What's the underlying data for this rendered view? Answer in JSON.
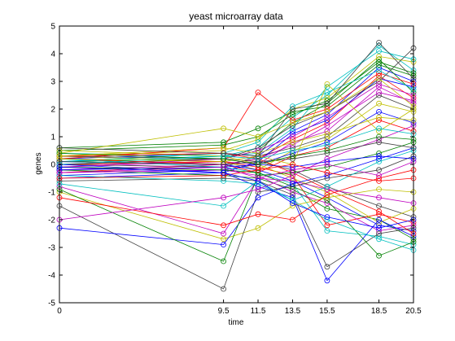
{
  "chart_data": {
    "type": "line",
    "title": "yeast microarray data",
    "xlabel": "time",
    "ylabel": "genes",
    "x": [
      0,
      9.5,
      11.5,
      13.5,
      15.5,
      18.5,
      20.5
    ],
    "x_ticks": [
      0,
      9.5,
      11.5,
      13.5,
      15.5,
      18.5,
      20.5
    ],
    "x_tick_labels": [
      "0",
      "9.5",
      "11.5",
      "13.5",
      "15.5",
      "18.5",
      "20.5"
    ],
    "xlim": [
      0,
      20.5
    ],
    "y_ticks": [
      -5,
      -4,
      -3,
      -2,
      -1,
      0,
      1,
      2,
      3,
      4,
      5
    ],
    "y_tick_labels": [
      "-5",
      "-4",
      "-3",
      "-2",
      "-1",
      "0",
      "1",
      "2",
      "3",
      "4",
      "5"
    ],
    "ylim": [
      -5,
      5
    ],
    "grid": false,
    "legend": "none",
    "marker": "open-circle",
    "series_colors": [
      "#0000ff",
      "#008000",
      "#ff0000",
      "#00bfbf",
      "#bf00bf",
      "#bfbf00",
      "#404040"
    ],
    "series": [
      {
        "values": [
          0.2,
          0.4,
          0.3,
          1.2,
          1.8,
          3.5,
          3.0
        ]
      },
      {
        "values": [
          0.1,
          0.2,
          0.5,
          1.5,
          2.2,
          3.8,
          2.6
        ]
      },
      {
        "values": [
          -0.3,
          0.0,
          0.2,
          0.9,
          1.5,
          3.2,
          2.4
        ]
      },
      {
        "values": [
          0.4,
          0.3,
          0.6,
          1.7,
          2.5,
          4.3,
          3.4
        ]
      },
      {
        "values": [
          -0.1,
          0.1,
          0.0,
          0.8,
          1.2,
          2.8,
          2.2
        ]
      },
      {
        "values": [
          0.3,
          0.5,
          0.9,
          2.0,
          2.4,
          3.9,
          3.7
        ]
      },
      {
        "values": [
          0.0,
          -0.1,
          0.3,
          0.6,
          1.0,
          2.5,
          2.0
        ]
      },
      {
        "values": [
          -0.5,
          -0.3,
          0.1,
          1.1,
          1.6,
          3.1,
          2.8
        ]
      },
      {
        "values": [
          0.6,
          0.8,
          1.3,
          1.9,
          2.1,
          3.6,
          3.2
        ]
      },
      {
        "values": [
          0.2,
          0.6,
          2.6,
          1.6,
          2.0,
          3.3,
          2.9
        ]
      },
      {
        "values": [
          0.1,
          0.3,
          0.4,
          1.3,
          2.8,
          4.1,
          3.8
        ]
      },
      {
        "values": [
          -0.2,
          0.0,
          0.2,
          0.7,
          1.4,
          2.6,
          2.3
        ]
      },
      {
        "values": [
          0.3,
          0.1,
          -0.2,
          0.5,
          0.9,
          2.2,
          1.9
        ]
      },
      {
        "values": [
          0.0,
          0.2,
          0.6,
          1.4,
          1.9,
          3.0,
          4.2
        ]
      },
      {
        "values": [
          -0.4,
          -0.2,
          0.0,
          0.4,
          0.8,
          1.9,
          1.5
        ]
      },
      {
        "values": [
          0.5,
          0.7,
          1.0,
          1.8,
          2.3,
          3.7,
          3.3
        ]
      },
      {
        "values": [
          0.2,
          0.0,
          -0.3,
          0.3,
          0.6,
          1.6,
          1.2
        ]
      },
      {
        "values": [
          0.1,
          0.4,
          0.8,
          2.1,
          2.6,
          3.4,
          2.7
        ]
      },
      {
        "values": [
          -0.1,
          0.2,
          0.5,
          1.0,
          1.7,
          2.9,
          2.5
        ]
      },
      {
        "values": [
          0.4,
          1.3,
          1.0,
          1.5,
          1.9,
          3.1,
          2.1
        ]
      },
      {
        "values": [
          0.3,
          0.2,
          0.1,
          -0.2,
          -0.8,
          -1.5,
          -1.9
        ]
      },
      {
        "values": [
          0.1,
          0.0,
          -0.2,
          -0.6,
          -1.2,
          -2.2,
          -2.4
        ]
      },
      {
        "values": [
          -0.2,
          -0.4,
          -0.5,
          -0.9,
          -1.6,
          -2.0,
          -2.7
        ]
      },
      {
        "values": [
          0.0,
          0.1,
          -0.1,
          -0.4,
          -2.2,
          -1.8,
          -2.1
        ]
      },
      {
        "values": [
          0.2,
          -0.1,
          -0.3,
          -0.7,
          -2.4,
          -2.6,
          -2.9
        ]
      },
      {
        "values": [
          -0.3,
          -0.2,
          -0.4,
          -1.0,
          -1.4,
          -2.4,
          -2.2
        ]
      },
      {
        "values": [
          0.5,
          0.3,
          0.0,
          -0.5,
          -1.0,
          -2.1,
          -1.6
        ]
      },
      {
        "values": [
          -0.6,
          -0.5,
          -0.6,
          -1.1,
          -3.7,
          -2.5,
          -2.3
        ]
      },
      {
        "values": [
          0.0,
          -0.3,
          -0.8,
          -1.2,
          -4.2,
          -2.0,
          -2.6
        ]
      },
      {
        "values": [
          -0.1,
          -0.2,
          -0.3,
          -0.8,
          -1.3,
          -3.3,
          -2.8
        ]
      },
      {
        "values": [
          0.3,
          0.4,
          0.2,
          -0.3,
          -0.9,
          -1.7,
          -2.5
        ]
      },
      {
        "values": [
          -0.4,
          -0.6,
          -0.7,
          -1.3,
          -2.0,
          -2.7,
          -3.1
        ]
      },
      {
        "values": [
          -0.8,
          -2.5,
          -0.5,
          -0.6,
          -0.9,
          -1.2,
          -1.4
        ]
      },
      {
        "values": [
          -1.0,
          -2.7,
          -2.3,
          -1.5,
          -1.2,
          -0.9,
          -1.0
        ]
      },
      {
        "values": [
          -1.5,
          -4.5,
          -1.0,
          -0.8,
          -0.5,
          -0.2,
          0.3
        ]
      },
      {
        "values": [
          -2.3,
          -2.9,
          -1.2,
          -0.7,
          -0.4,
          0.2,
          0.6
        ]
      },
      {
        "values": [
          -0.9,
          -3.5,
          -0.4,
          -0.3,
          -0.1,
          0.4,
          0.8
        ]
      },
      {
        "values": [
          -1.2,
          -2.2,
          -1.8,
          -2.0,
          -1.1,
          -0.5,
          -0.2
        ]
      },
      {
        "values": [
          -0.7,
          -1.5,
          -0.6,
          -1.3,
          -0.8,
          0.1,
          0.5
        ]
      },
      {
        "values": [
          -2.0,
          -1.2,
          -0.9,
          -0.4,
          0.2,
          0.9,
          1.4
        ]
      },
      {
        "values": [
          0.2,
          0.1,
          0.3,
          0.0,
          2.9,
          1.2,
          2.0
        ]
      },
      {
        "values": [
          0.1,
          0.0,
          0.1,
          0.2,
          0.4,
          0.8,
          0.6
        ]
      },
      {
        "values": [
          -0.2,
          -0.1,
          0.0,
          -0.1,
          0.1,
          0.3,
          0.2
        ]
      },
      {
        "values": [
          0.4,
          0.2,
          0.0,
          0.3,
          0.5,
          1.0,
          0.9
        ]
      },
      {
        "values": [
          -0.5,
          -0.4,
          -0.2,
          0.0,
          -0.3,
          -0.6,
          -0.5
        ]
      },
      {
        "values": [
          0.0,
          0.3,
          0.2,
          0.5,
          0.7,
          1.3,
          1.1
        ]
      },
      {
        "values": [
          -0.3,
          -0.1,
          -0.5,
          -0.2,
          0.0,
          -0.4,
          0.1
        ]
      },
      {
        "values": [
          0.3,
          0.6,
          0.4,
          0.8,
          1.1,
          1.7,
          1.6
        ]
      },
      {
        "values": [
          0.6,
          0.4,
          0.3,
          2.0,
          2.2,
          4.4,
          3.1
        ]
      },
      {
        "values": [
          -0.1,
          -0.3,
          -0.6,
          -1.4,
          -1.9,
          -2.3,
          -2.0
        ]
      }
    ]
  }
}
